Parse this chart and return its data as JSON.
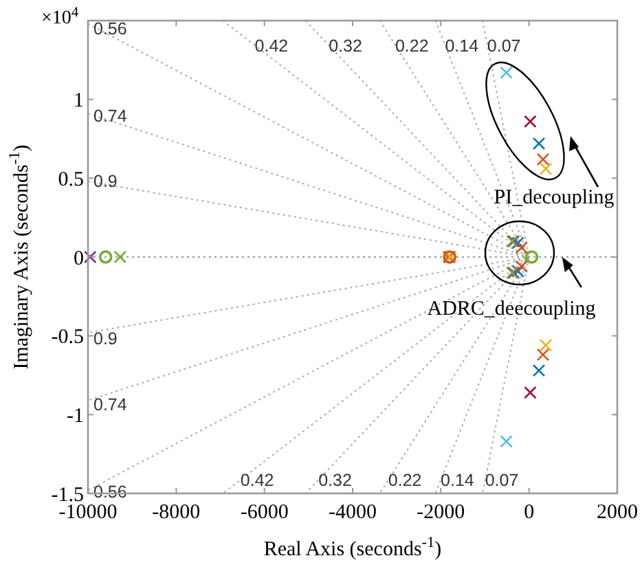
{
  "chart_data": {
    "type": "scatter",
    "xlabel": "Real Axis (seconds$^{-1}$)",
    "ylabel": "Imaginary Axis (seconds$^{-1}$)",
    "xlim": [
      -10000,
      2000
    ],
    "xticks": [
      -10000,
      -8000,
      -6000,
      -4000,
      -2000,
      0,
      2000
    ],
    "ylim": [
      -1.5,
      1.5
    ],
    "yticks": [
      -1.5,
      -1,
      -0.5,
      0,
      0.5,
      1
    ],
    "series": [
      {
        "type": "line",
        "name": "0.56",
        "color": "#aaaaaa",
        "line_style": "dotted",
        "x": [
          -10000,
          0,
          -10000
        ],
        "values": [
          1.48,
          0,
          -1.48
        ]
      },
      {
        "type": "line",
        "name": "0.74",
        "color": "#aaaaaa",
        "line_style": "dotted",
        "x": [
          -10000,
          0,
          -10000
        ],
        "values": [
          0.91,
          0,
          -0.91
        ]
      },
      {
        "type": "line",
        "name": "0.9",
        "color": "#aaaaaa",
        "line_style": "dotted",
        "x": [
          -10000,
          0,
          -10000
        ],
        "values": [
          0.48,
          0,
          -0.48
        ]
      },
      {
        "type": "line",
        "name": "0.42",
        "color": "#aaaaaa",
        "line_style": "dotted",
        "x": [
          -6941,
          0,
          -6941
        ],
        "values": [
          1.5,
          0,
          -1.5
        ]
      },
      {
        "type": "line",
        "name": "0.32",
        "color": "#aaaaaa",
        "line_style": "dotted",
        "x": [
          -5066,
          0,
          -5066
        ],
        "values": [
          1.5,
          0,
          -1.5
        ]
      },
      {
        "type": "line",
        "name": "0.22",
        "color": "#aaaaaa",
        "line_style": "dotted",
        "x": [
          -3383,
          0,
          -3383
        ],
        "values": [
          1.5,
          0,
          -1.5
        ]
      },
      {
        "type": "line",
        "name": "0.14",
        "color": "#aaaaaa",
        "line_style": "dotted",
        "x": [
          -2122,
          0,
          -2122
        ],
        "values": [
          1.5,
          0,
          -1.5
        ]
      },
      {
        "type": "line",
        "name": "0.07",
        "color": "#aaaaaa",
        "line_style": "dotted",
        "x": [
          -1053,
          0,
          -1053
        ],
        "values": [
          1.5,
          0,
          -1.5
        ]
      },
      {
        "type": "line",
        "color": "#999999",
        "line_style": "dotted",
        "x": [
          -10000,
          2000
        ],
        "values": [
          0,
          0
        ]
      },
      {
        "color": "#0072bd",
        "marker": "cross",
        "x": [
          -1800,
          224,
          224,
          -250,
          -250
        ],
        "values": [
          0,
          0.72,
          -0.72,
          0.09,
          -0.09
        ]
      },
      {
        "color": "#d95319",
        "marker": "cross",
        "x": [
          -1820,
          317,
          317,
          -170,
          -170
        ],
        "values": [
          0,
          0.62,
          -0.62,
          0.06,
          -0.06
        ]
      },
      {
        "color": "#edb120",
        "marker": "cross",
        "x": [
          -1780,
          380,
          380
        ],
        "values": [
          0,
          0.56,
          -0.56
        ]
      },
      {
        "color": "#a2142f",
        "marker": "cross",
        "x": [
          27,
          27
        ],
        "values": [
          0.86,
          -0.86
        ]
      },
      {
        "color": "#4dbeee",
        "marker": "cross",
        "x": [
          -515,
          -515
        ],
        "values": [
          1.17,
          -1.17
        ]
      },
      {
        "color": "#7e2f8e",
        "marker": "cross",
        "x": [
          -9950,
          -350,
          -350
        ],
        "values": [
          0,
          0.1,
          -0.1
        ]
      },
      {
        "color": "#77ac30",
        "marker": "cross",
        "x": [
          -9270,
          -380,
          -380
        ],
        "values": [
          0,
          0.1,
          -0.1
        ]
      },
      {
        "color": "#d95319",
        "marker": "circle",
        "x": [
          -1800
        ],
        "values": [
          0
        ]
      },
      {
        "color": "#77ac30",
        "marker": "circle",
        "x": [
          -9600,
          60
        ],
        "values": [
          0,
          0
        ]
      }
    ],
    "annotations": [
      "×10$^{4}$",
      "PI_decoupling",
      {
        "text": "ADRC_deecoupling",
        "x": 750,
        "y": 0
      }
    ]
  }
}
